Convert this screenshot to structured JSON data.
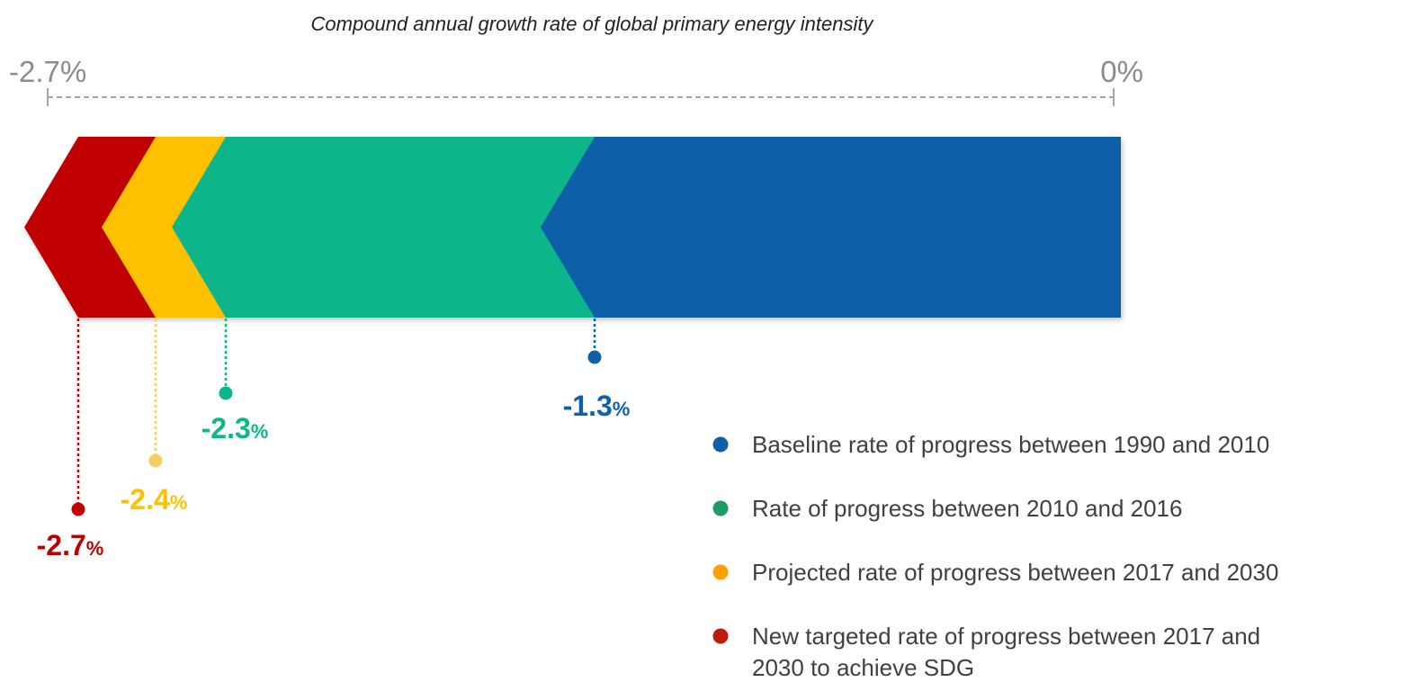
{
  "chart_data": {
    "type": "bar",
    "title": "Compound annual growth rate of global primary energy intensity",
    "axis": {
      "min_label": "-2.7%",
      "max_label": "0%",
      "xlim": [
        -2.7,
        0
      ],
      "style": "dashed"
    },
    "series": [
      {
        "name": "Baseline rate of progress between 1990 and 2010",
        "value": -1.3,
        "value_text": "-1.3",
        "unit": "%",
        "color": "#0f60a8"
      },
      {
        "name": "Rate of progress between 2010 and 2016",
        "value": -2.3,
        "value_text": "-2.3",
        "unit": "%",
        "color": "#0db58b"
      },
      {
        "name": "Projected rate of progress between 2017 and 2030",
        "value": -2.4,
        "value_text": "-2.4",
        "unit": "%",
        "color": "#ffc000"
      },
      {
        "name": "New targeted rate of progress between 2017 and 2030 to achieve SDG",
        "value": -2.7,
        "value_text": "-2.7",
        "unit": "%",
        "color": "#c00000"
      }
    ],
    "legend_position": "bottom-right"
  },
  "legend": {
    "items": [
      {
        "lines": [
          "Baseline rate of progress between 1990 and 2010"
        ],
        "marker_color": "#0f60a8"
      },
      {
        "lines": [
          "Rate of progress between 2010 and 2016"
        ],
        "marker_color": "#1e9c63"
      },
      {
        "lines": [
          "Projected rate of progress between 2017 and 2030"
        ],
        "marker_color": "#ffa000"
      },
      {
        "lines": [
          "New targeted rate of progress between 2017 and",
          "2030 to achieve SDG"
        ],
        "marker_color": "#c01a0a"
      }
    ]
  }
}
